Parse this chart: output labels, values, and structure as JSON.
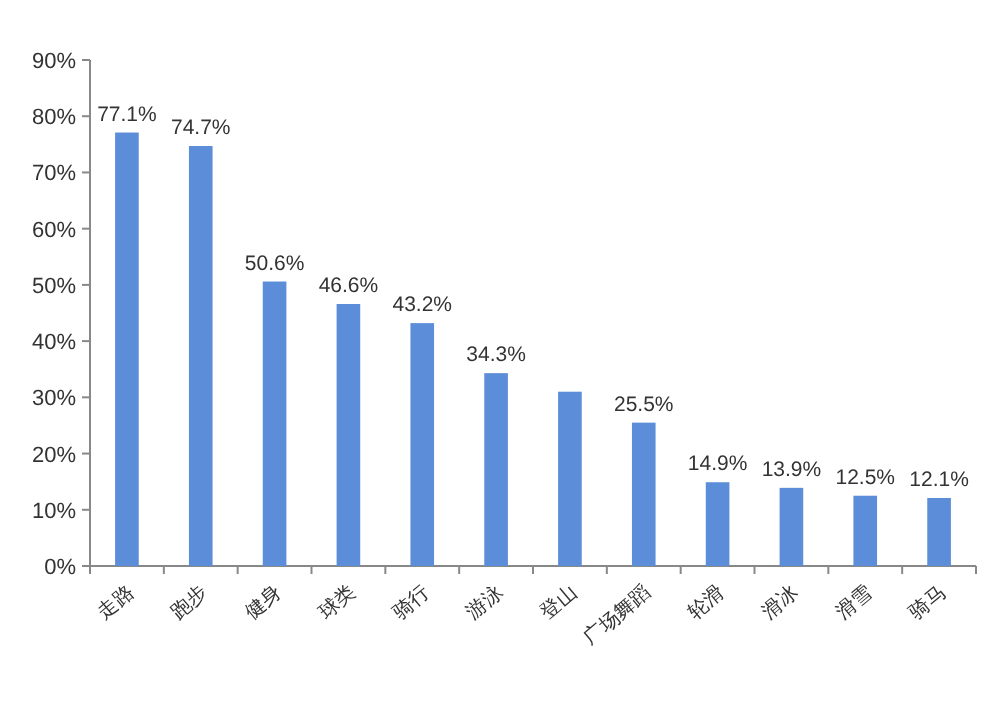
{
  "chart_data": {
    "type": "bar",
    "categories": [
      "走路",
      "跑步",
      "健身",
      "球类",
      "骑行",
      "游泳",
      "登山",
      "广场舞蹈",
      "轮滑",
      "滑冰",
      "滑雪",
      "骑马"
    ],
    "values": [
      77.1,
      74.7,
      50.6,
      46.6,
      43.2,
      34.3,
      31,
      25.5,
      14.9,
      13.9,
      12.5,
      12.1
    ],
    "value_labels": [
      "77.1%",
      "74.7%",
      "50.6%",
      "46.6%",
      "43.2%",
      "34.3%",
      null,
      "25.5%",
      "14.9%",
      "13.9%",
      "12.5%",
      "12.1%"
    ],
    "color": "#5b8dd9",
    "ylim": [
      0,
      90
    ],
    "yticks": [
      {
        "value": 0,
        "label": "0%"
      },
      {
        "value": 10,
        "label": "10%"
      },
      {
        "value": 20,
        "label": "20%"
      },
      {
        "value": 30,
        "label": "30%"
      },
      {
        "value": 40,
        "label": "40%"
      },
      {
        "value": 50,
        "label": "50%"
      },
      {
        "value": 60,
        "label": "60%"
      },
      {
        "value": 70,
        "label": "70%"
      },
      {
        "value": 80,
        "label": "80%"
      },
      {
        "value": 90,
        "label": "90%"
      }
    ],
    "grid": false
  }
}
